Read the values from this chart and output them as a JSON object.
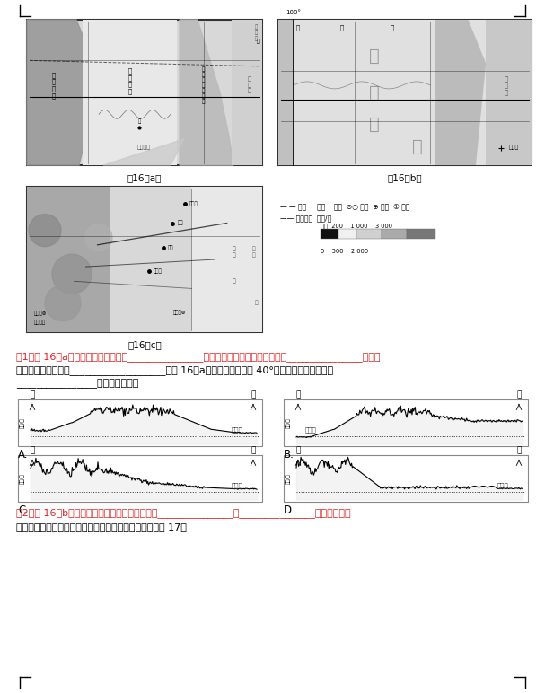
{
  "bg_color": "#ffffff",
  "fig_a_label": "图16（a）",
  "fig_b_label": "图16（b）",
  "fig_c_label": "图16（c）",
  "q1_line1": "（1）图 16（a）所示区域的东北部为_______________山脉，中部为中部平原，西部为_______________山脉；",
  "q1_line2": "地势的大总体特征是___________________。图 16（a）所示区域沿北纬 40°绫的地形剖面示意图是",
  "q1_line3": "________________（单项选择）。",
  "q2_line1": "（2）图 16（b）中，中部平原的总体地势特征为_______________高_______________低。该平原为",
  "q2_line2": "重要的农业区，分析当地农业生产的自然条件，完成框图 17。",
  "legend_text1": "— — 国界     河湖    运河  ⊙○ 城市  ⊕ 机场  ① 港口",
  "legend_text2": "—— 高速公路  陆高/米",
  "legend_elev_labels": "泥地  200    1 000    3 000",
  "legend_scale_labels": "0    500    2 000",
  "label_west": "西",
  "label_east": "东",
  "label_ocean_right": "大西洋",
  "label_ocean_left": "大西洋",
  "label_elev": "海拔/米"
}
